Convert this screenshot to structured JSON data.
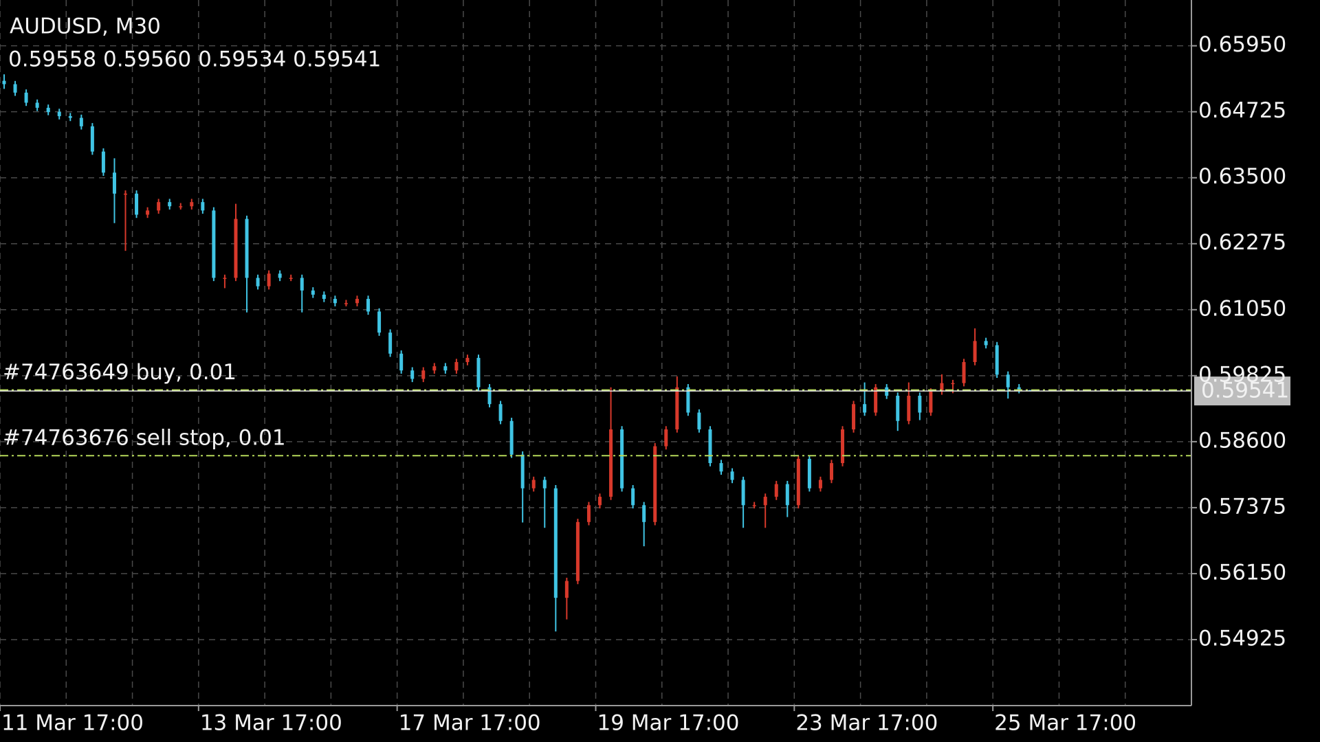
{
  "chart_data": {
    "type": "candlestick",
    "title": "AUDUSD, M30",
    "ohlc_label": "0.59558 0.59560 0.59534 0.59541",
    "up_color": "#d8392b",
    "down_color": "#40c4e4",
    "grid": true,
    "xlim": [
      0,
      108
    ],
    "xticks": [
      {
        "value": 0,
        "label": "11 Mar 17:00"
      },
      {
        "value": 18,
        "label": "13 Mar 17:00"
      },
      {
        "value": 36,
        "label": "17 Mar 17:00"
      },
      {
        "value": 54,
        "label": "19 Mar 17:00"
      },
      {
        "value": 72,
        "label": "23 Mar 17:00"
      },
      {
        "value": 90,
        "label": "25 Mar 17:00"
      }
    ],
    "ylim": [
      0.537,
      0.668
    ],
    "yticks": [
      {
        "value": 0.6595,
        "label": "0.65950"
      },
      0.64725,
      {
        "value": 0.635,
        "label": "0.63500"
      },
      0.62275,
      {
        "value": 0.6105,
        "label": "0.61050"
      },
      0.59825,
      {
        "value": 0.586,
        "label": "0.58600"
      },
      0.57375,
      {
        "value": 0.5615,
        "label": "0.56150"
      },
      0.54925
    ],
    "open": [
      0.653,
      0.65237,
      0.6508,
      0.64893,
      0.64799,
      0.64721,
      0.64643,
      0.64612,
      0.64455,
      0.63986,
      0.63595,
      0.63205,
      0.63205,
      0.62814,
      0.62892,
      0.63048,
      0.6297,
      0.6297,
      0.63048,
      0.62892,
      0.61641,
      0.61641,
      0.62736,
      0.61641,
      0.61485,
      0.6172,
      0.61641,
      0.61641,
      0.61407,
      0.61329,
      0.61251,
      0.61172,
      0.61172,
      0.61251,
      0.61016,
      0.60625,
      0.60234,
      0.59922,
      0.59766,
      0.59922,
      0.6,
      0.59922,
      0.60078,
      0.60156,
      0.59609,
      0.59297,
      0.58984,
      0.58359,
      0.57734,
      0.5789,
      0.57734,
      0.55701,
      0.56014,
      0.57108,
      0.57421,
      0.57577,
      0.58828,
      0.57734,
      0.57421,
      0.57108,
      0.58515,
      0.58828,
      0.59609,
      0.5914,
      0.58828,
      0.58202,
      0.58046,
      0.5789,
      0.57421,
      0.57421,
      0.57577,
      0.57812,
      0.57421,
      0.58281,
      0.57734,
      0.5789,
      0.58202,
      0.58828,
      0.59297,
      0.5914,
      0.59609,
      0.59453,
      0.58984,
      0.59453,
      0.5914,
      0.59531,
      0.59687,
      0.59687,
      0.60078,
      0.60469,
      0.60391,
      0.59844,
      0.59609,
      0.59558
    ],
    "high": [
      0.6542,
      0.65297,
      0.6514,
      0.64953,
      0.64859,
      0.64781,
      0.64703,
      0.64672,
      0.64515,
      0.64046,
      0.63861,
      0.63265,
      0.63265,
      0.62952,
      0.63108,
      0.63108,
      0.6303,
      0.63108,
      0.63108,
      0.62952,
      0.61701,
      0.63017,
      0.62796,
      0.61701,
      0.6178,
      0.6178,
      0.61701,
      0.61701,
      0.61467,
      0.61389,
      0.61311,
      0.61232,
      0.61311,
      0.61311,
      0.61076,
      0.60685,
      0.60294,
      0.59982,
      0.59982,
      0.6006,
      0.6006,
      0.60138,
      0.60216,
      0.60216,
      0.59669,
      0.59357,
      0.59044,
      0.58419,
      0.5795,
      0.5795,
      0.57794,
      0.56074,
      0.57168,
      0.57481,
      0.57637,
      0.59609,
      0.58888,
      0.57794,
      0.57481,
      0.58575,
      0.58888,
      0.59812,
      0.59669,
      0.592,
      0.58888,
      0.58262,
      0.58106,
      0.5795,
      0.57481,
      0.57637,
      0.57872,
      0.57872,
      0.58341,
      0.58341,
      0.5795,
      0.58262,
      0.58888,
      0.59357,
      0.597,
      0.59669,
      0.59669,
      0.59513,
      0.597,
      0.59513,
      0.59591,
      0.5985,
      0.59747,
      0.60138,
      0.60704,
      0.60529,
      0.60451,
      0.59904,
      0.59669,
      0.5956
    ],
    "low": [
      0.6515,
      0.6502,
      0.64833,
      0.64739,
      0.64661,
      0.64583,
      0.64552,
      0.64395,
      0.63926,
      0.63535,
      0.62658,
      0.62142,
      0.62754,
      0.62754,
      0.62832,
      0.6291,
      0.6291,
      0.6291,
      0.62832,
      0.61581,
      0.6145,
      0.61581,
      0.61,
      0.61425,
      0.61425,
      0.61581,
      0.61581,
      0.61,
      0.61269,
      0.61191,
      0.61112,
      0.61112,
      0.61112,
      0.60956,
      0.60565,
      0.60174,
      0.59862,
      0.59706,
      0.59706,
      0.59862,
      0.59862,
      0.59862,
      0.60018,
      0.59549,
      0.59237,
      0.58924,
      0.58299,
      0.571,
      0.57674,
      0.57,
      0.55076,
      0.553,
      0.55954,
      0.57048,
      0.57361,
      0.57517,
      0.57674,
      0.57361,
      0.56658,
      0.57048,
      0.58455,
      0.58768,
      0.5908,
      0.58768,
      0.58142,
      0.57986,
      0.5783,
      0.57,
      0.57361,
      0.57,
      0.57517,
      0.572,
      0.57361,
      0.57674,
      0.57674,
      0.5783,
      0.58142,
      0.58768,
      0.5908,
      0.5908,
      0.59393,
      0.588,
      0.58924,
      0.59,
      0.5908,
      0.59471,
      0.595,
      0.59627,
      0.60018,
      0.60331,
      0.59784,
      0.594,
      0.59498,
      0.59534
    ],
    "close": [
      0.65237,
      0.6508,
      0.64893,
      0.64799,
      0.64721,
      0.64643,
      0.64612,
      0.64455,
      0.63986,
      0.63595,
      0.63205,
      0.63205,
      0.62814,
      0.62892,
      0.63048,
      0.6297,
      0.6297,
      0.63048,
      0.62892,
      0.61641,
      0.61641,
      0.62736,
      0.61641,
      0.61485,
      0.6172,
      0.61641,
      0.61641,
      0.61407,
      0.61329,
      0.61251,
      0.61172,
      0.61172,
      0.61251,
      0.61016,
      0.60625,
      0.60234,
      0.59922,
      0.59766,
      0.59922,
      0.6,
      0.59922,
      0.60078,
      0.60156,
      0.59609,
      0.59297,
      0.58984,
      0.58359,
      0.57734,
      0.5789,
      0.57734,
      0.55701,
      0.56014,
      0.57108,
      0.57421,
      0.57577,
      0.58828,
      0.57734,
      0.57421,
      0.57108,
      0.58515,
      0.58828,
      0.59609,
      0.5914,
      0.58828,
      0.58202,
      0.58046,
      0.5789,
      0.57421,
      0.57421,
      0.57577,
      0.57812,
      0.57421,
      0.58281,
      0.57734,
      0.5789,
      0.58202,
      0.58828,
      0.59297,
      0.5914,
      0.59609,
      0.59453,
      0.58984,
      0.59453,
      0.5914,
      0.59531,
      0.59687,
      0.59687,
      0.60078,
      0.60469,
      0.60391,
      0.59844,
      0.59609,
      0.59558,
      0.59541
    ],
    "bid": 0.59541,
    "orders": [
      {
        "label": "#74763649 buy, 0.01",
        "price": 0.5956,
        "color": "#b5d85a"
      },
      {
        "label": "#74763676 sell stop, 0.01",
        "price": 0.5834,
        "color": "#b5d85a"
      }
    ]
  }
}
